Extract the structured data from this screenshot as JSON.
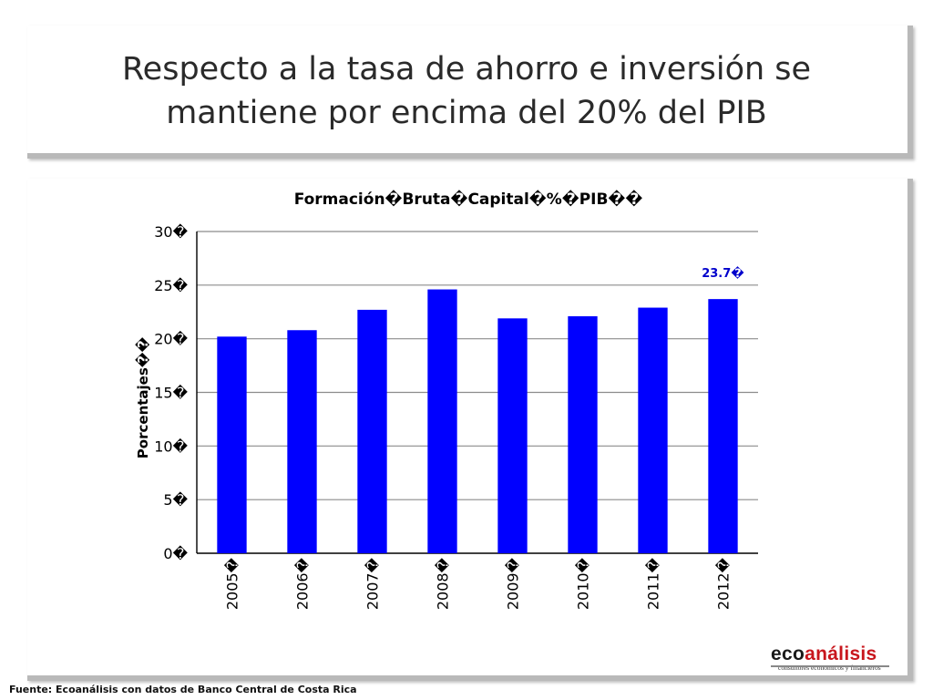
{
  "slide": {
    "title_line1": "Respecto a la tasa de ahorro e inversión se",
    "title_line2": "mantiene por encima del 20% del PIB",
    "source": "Fuente: Ecoanálisis con datos de Banco  Central de Costa Rica",
    "logo_eco": "eco",
    "logo_analisis": "análisis",
    "logo_tagline": "consultores económicos y financieros"
  },
  "colors": {
    "bar": "#0000ff",
    "annotation": "#0000cc",
    "grid": "#8c8c8c",
    "logo_accent": "#c8161d"
  },
  "chart_data": {
    "type": "bar",
    "title": "Formación�Bruta�Capital�%�PIB��",
    "ylabel": "Porcentajes��",
    "xlabel": "",
    "categories": [
      "2005�",
      "2006�",
      "2007�",
      "2008�",
      "2009�",
      "2010�",
      "2011�",
      "2012�"
    ],
    "values": [
      20.2,
      20.8,
      22.7,
      24.6,
      21.9,
      22.1,
      22.9,
      23.7
    ],
    "ylim": [
      0,
      30
    ],
    "yticks": [
      "0�",
      "5�",
      "10�",
      "15�",
      "20�",
      "25�",
      "30�"
    ],
    "grid": true,
    "legend": "none",
    "annotations": [
      {
        "category_index": 7,
        "text": "23.7�"
      }
    ]
  }
}
